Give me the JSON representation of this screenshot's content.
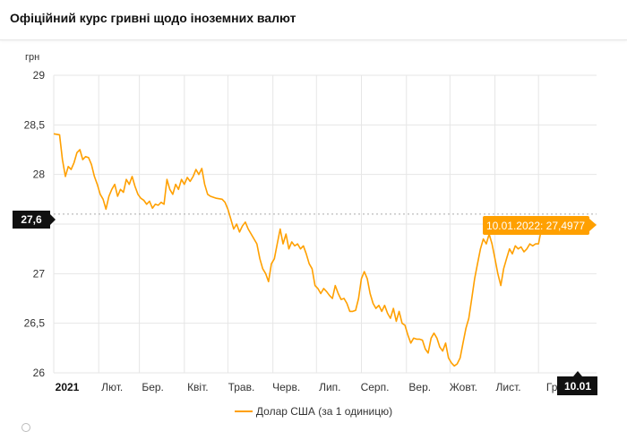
{
  "header": {
    "title": "Офіційний курс гривні щодо іноземних валют"
  },
  "legend": {
    "label": "Долар США (за 1 одиницю)",
    "color": "#ffa000"
  },
  "colors": {
    "line": "#ffa000",
    "tooltip_bg": "#ffa000",
    "badge_bg": "#111111",
    "grid": "#e6e6e6"
  },
  "crosshair": {
    "y_label": "27,6",
    "x_label": "10.01",
    "value": 27.6
  },
  "tooltip": {
    "text": "10.01.2022: 27,4977"
  },
  "chart_data": {
    "type": "line",
    "title": "",
    "ylabel": "грн",
    "xlabel": "",
    "ylim": [
      26,
      29
    ],
    "yticks": [
      {
        "value": 29,
        "label": "29"
      },
      {
        "value": 28.5,
        "label": "28,5"
      },
      {
        "value": 28,
        "label": "28"
      },
      {
        "value": 27.5,
        "label": ""
      },
      {
        "value": 27,
        "label": "27"
      },
      {
        "value": 26.5,
        "label": "26,5"
      },
      {
        "value": 26,
        "label": "26"
      }
    ],
    "xlim": [
      0,
      374
    ],
    "xticks": [
      {
        "day": 0,
        "label": "2021",
        "bold": true
      },
      {
        "day": 31,
        "label": "Лют."
      },
      {
        "day": 59,
        "label": "Бер."
      },
      {
        "day": 90,
        "label": "Квіт."
      },
      {
        "day": 120,
        "label": "Трав."
      },
      {
        "day": 151,
        "label": "Черв."
      },
      {
        "day": 181,
        "label": "Лип."
      },
      {
        "day": 212,
        "label": "Серп."
      },
      {
        "day": 243,
        "label": "Вер."
      },
      {
        "day": 273,
        "label": "Жовт."
      },
      {
        "day": 304,
        "label": "Лист."
      },
      {
        "day": 334,
        "label": "Гр"
      }
    ],
    "grid": true,
    "legend_position": "bottom",
    "series": [
      {
        "name": "Долар США (за 1 одиницю)",
        "color": "#ffa000",
        "points": [
          [
            0,
            28.41
          ],
          [
            4,
            28.4
          ],
          [
            6,
            28.15
          ],
          [
            8,
            27.98
          ],
          [
            10,
            28.08
          ],
          [
            12,
            28.05
          ],
          [
            14,
            28.12
          ],
          [
            16,
            28.22
          ],
          [
            18,
            28.25
          ],
          [
            20,
            28.15
          ],
          [
            22,
            28.18
          ],
          [
            24,
            28.17
          ],
          [
            26,
            28.1
          ],
          [
            28,
            27.98
          ],
          [
            30,
            27.9
          ],
          [
            32,
            27.8
          ],
          [
            34,
            27.75
          ],
          [
            36,
            27.65
          ],
          [
            38,
            27.78
          ],
          [
            40,
            27.85
          ],
          [
            42,
            27.9
          ],
          [
            44,
            27.78
          ],
          [
            46,
            27.85
          ],
          [
            48,
            27.82
          ],
          [
            50,
            27.95
          ],
          [
            52,
            27.9
          ],
          [
            54,
            27.98
          ],
          [
            56,
            27.88
          ],
          [
            58,
            27.8
          ],
          [
            60,
            27.76
          ],
          [
            62,
            27.74
          ],
          [
            64,
            27.7
          ],
          [
            66,
            27.73
          ],
          [
            68,
            27.66
          ],
          [
            70,
            27.7
          ],
          [
            72,
            27.69
          ],
          [
            74,
            27.72
          ],
          [
            76,
            27.7
          ],
          [
            78,
            27.95
          ],
          [
            80,
            27.85
          ],
          [
            82,
            27.8
          ],
          [
            84,
            27.9
          ],
          [
            86,
            27.85
          ],
          [
            88,
            27.95
          ],
          [
            90,
            27.9
          ],
          [
            92,
            27.97
          ],
          [
            94,
            27.93
          ],
          [
            96,
            27.98
          ],
          [
            98,
            28.05
          ],
          [
            100,
            28.0
          ],
          [
            102,
            28.06
          ],
          [
            104,
            27.9
          ],
          [
            106,
            27.8
          ],
          [
            108,
            27.78
          ],
          [
            112,
            27.76
          ],
          [
            116,
            27.75
          ],
          [
            118,
            27.72
          ],
          [
            120,
            27.65
          ],
          [
            122,
            27.55
          ],
          [
            124,
            27.45
          ],
          [
            126,
            27.5
          ],
          [
            128,
            27.42
          ],
          [
            130,
            27.48
          ],
          [
            132,
            27.52
          ],
          [
            134,
            27.45
          ],
          [
            136,
            27.4
          ],
          [
            138,
            27.35
          ],
          [
            140,
            27.3
          ],
          [
            142,
            27.15
          ],
          [
            144,
            27.05
          ],
          [
            146,
            27.0
          ],
          [
            148,
            26.92
          ],
          [
            150,
            27.1
          ],
          [
            152,
            27.15
          ],
          [
            154,
            27.3
          ],
          [
            156,
            27.45
          ],
          [
            158,
            27.3
          ],
          [
            160,
            27.4
          ],
          [
            162,
            27.25
          ],
          [
            164,
            27.32
          ],
          [
            166,
            27.28
          ],
          [
            168,
            27.3
          ],
          [
            170,
            27.25
          ],
          [
            172,
            27.28
          ],
          [
            174,
            27.2
          ],
          [
            176,
            27.1
          ],
          [
            178,
            27.05
          ],
          [
            180,
            26.88
          ],
          [
            182,
            26.85
          ],
          [
            184,
            26.8
          ],
          [
            186,
            26.85
          ],
          [
            188,
            26.82
          ],
          [
            190,
            26.78
          ],
          [
            192,
            26.75
          ],
          [
            194,
            26.88
          ],
          [
            196,
            26.8
          ],
          [
            198,
            26.74
          ],
          [
            200,
            26.75
          ],
          [
            202,
            26.7
          ],
          [
            204,
            26.62
          ],
          [
            206,
            26.62
          ],
          [
            208,
            26.63
          ],
          [
            210,
            26.75
          ],
          [
            212,
            26.95
          ],
          [
            214,
            27.02
          ],
          [
            216,
            26.95
          ],
          [
            218,
            26.8
          ],
          [
            220,
            26.7
          ],
          [
            222,
            26.65
          ],
          [
            224,
            26.68
          ],
          [
            226,
            26.62
          ],
          [
            228,
            26.68
          ],
          [
            230,
            26.6
          ],
          [
            232,
            26.55
          ],
          [
            234,
            26.65
          ],
          [
            236,
            26.52
          ],
          [
            238,
            26.62
          ],
          [
            240,
            26.5
          ],
          [
            242,
            26.48
          ],
          [
            244,
            26.38
          ],
          [
            246,
            26.3
          ],
          [
            248,
            26.35
          ],
          [
            250,
            26.34
          ],
          [
            252,
            26.34
          ],
          [
            254,
            26.33
          ],
          [
            256,
            26.24
          ],
          [
            258,
            26.2
          ],
          [
            260,
            26.35
          ],
          [
            262,
            26.4
          ],
          [
            264,
            26.35
          ],
          [
            266,
            26.26
          ],
          [
            268,
            26.22
          ],
          [
            270,
            26.3
          ],
          [
            272,
            26.15
          ],
          [
            274,
            26.1
          ],
          [
            276,
            26.07
          ],
          [
            278,
            26.09
          ],
          [
            280,
            26.15
          ],
          [
            282,
            26.3
          ],
          [
            284,
            26.45
          ],
          [
            286,
            26.55
          ],
          [
            288,
            26.75
          ],
          [
            290,
            26.95
          ],
          [
            292,
            27.1
          ],
          [
            294,
            27.25
          ],
          [
            296,
            27.35
          ],
          [
            298,
            27.3
          ],
          [
            300,
            27.4
          ],
          [
            302,
            27.3
          ],
          [
            304,
            27.15
          ],
          [
            306,
            27.0
          ],
          [
            308,
            26.88
          ],
          [
            310,
            27.05
          ],
          [
            312,
            27.15
          ],
          [
            314,
            27.25
          ],
          [
            316,
            27.2
          ],
          [
            318,
            27.28
          ],
          [
            320,
            27.25
          ],
          [
            322,
            27.27
          ],
          [
            324,
            27.22
          ],
          [
            326,
            27.25
          ],
          [
            328,
            27.3
          ],
          [
            330,
            27.28
          ],
          [
            332,
            27.3
          ],
          [
            334,
            27.3
          ],
          [
            336,
            27.45
          ],
          [
            338,
            27.5
          ]
        ]
      }
    ]
  }
}
